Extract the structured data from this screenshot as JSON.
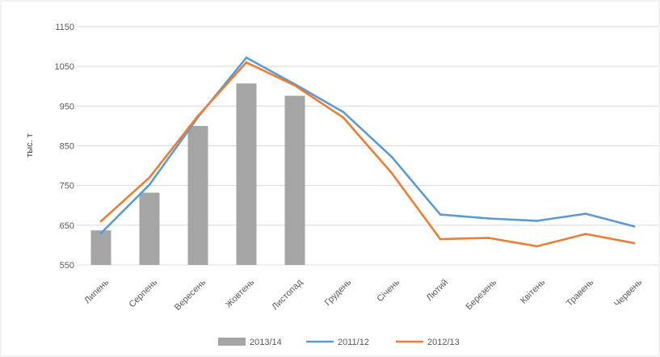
{
  "chart_data": {
    "type": "bar",
    "title": "",
    "xlabel": "",
    "ylabel": "тыс. т",
    "ylim": [
      550,
      1150
    ],
    "yticks": [
      550,
      650,
      750,
      850,
      950,
      1050,
      1150
    ],
    "grid": true,
    "legend_position": "bottom",
    "categories": [
      "Липень",
      "Серпень",
      "Вересень",
      "Жовтень",
      "Листопад",
      "Грудень",
      "Січень",
      "Лютий",
      "Березень",
      "Квітень",
      "Травень",
      "Червень"
    ],
    "series": [
      {
        "name": "2013/14",
        "type": "bar",
        "color": "#a5a5a5",
        "values": [
          637,
          732,
          900,
          1007,
          976,
          null,
          null,
          null,
          null,
          null,
          null,
          null
        ]
      },
      {
        "name": "2011/12",
        "type": "line",
        "color": "#5b9bd5",
        "values": [
          630,
          752,
          922,
          1072,
          1005,
          935,
          822,
          677,
          667,
          661,
          679,
          647
        ]
      },
      {
        "name": "2012/13",
        "type": "line",
        "color": "#ed7d31",
        "values": [
          660,
          770,
          925,
          1060,
          1002,
          921,
          781,
          615,
          618,
          597,
          628,
          605
        ]
      }
    ]
  }
}
